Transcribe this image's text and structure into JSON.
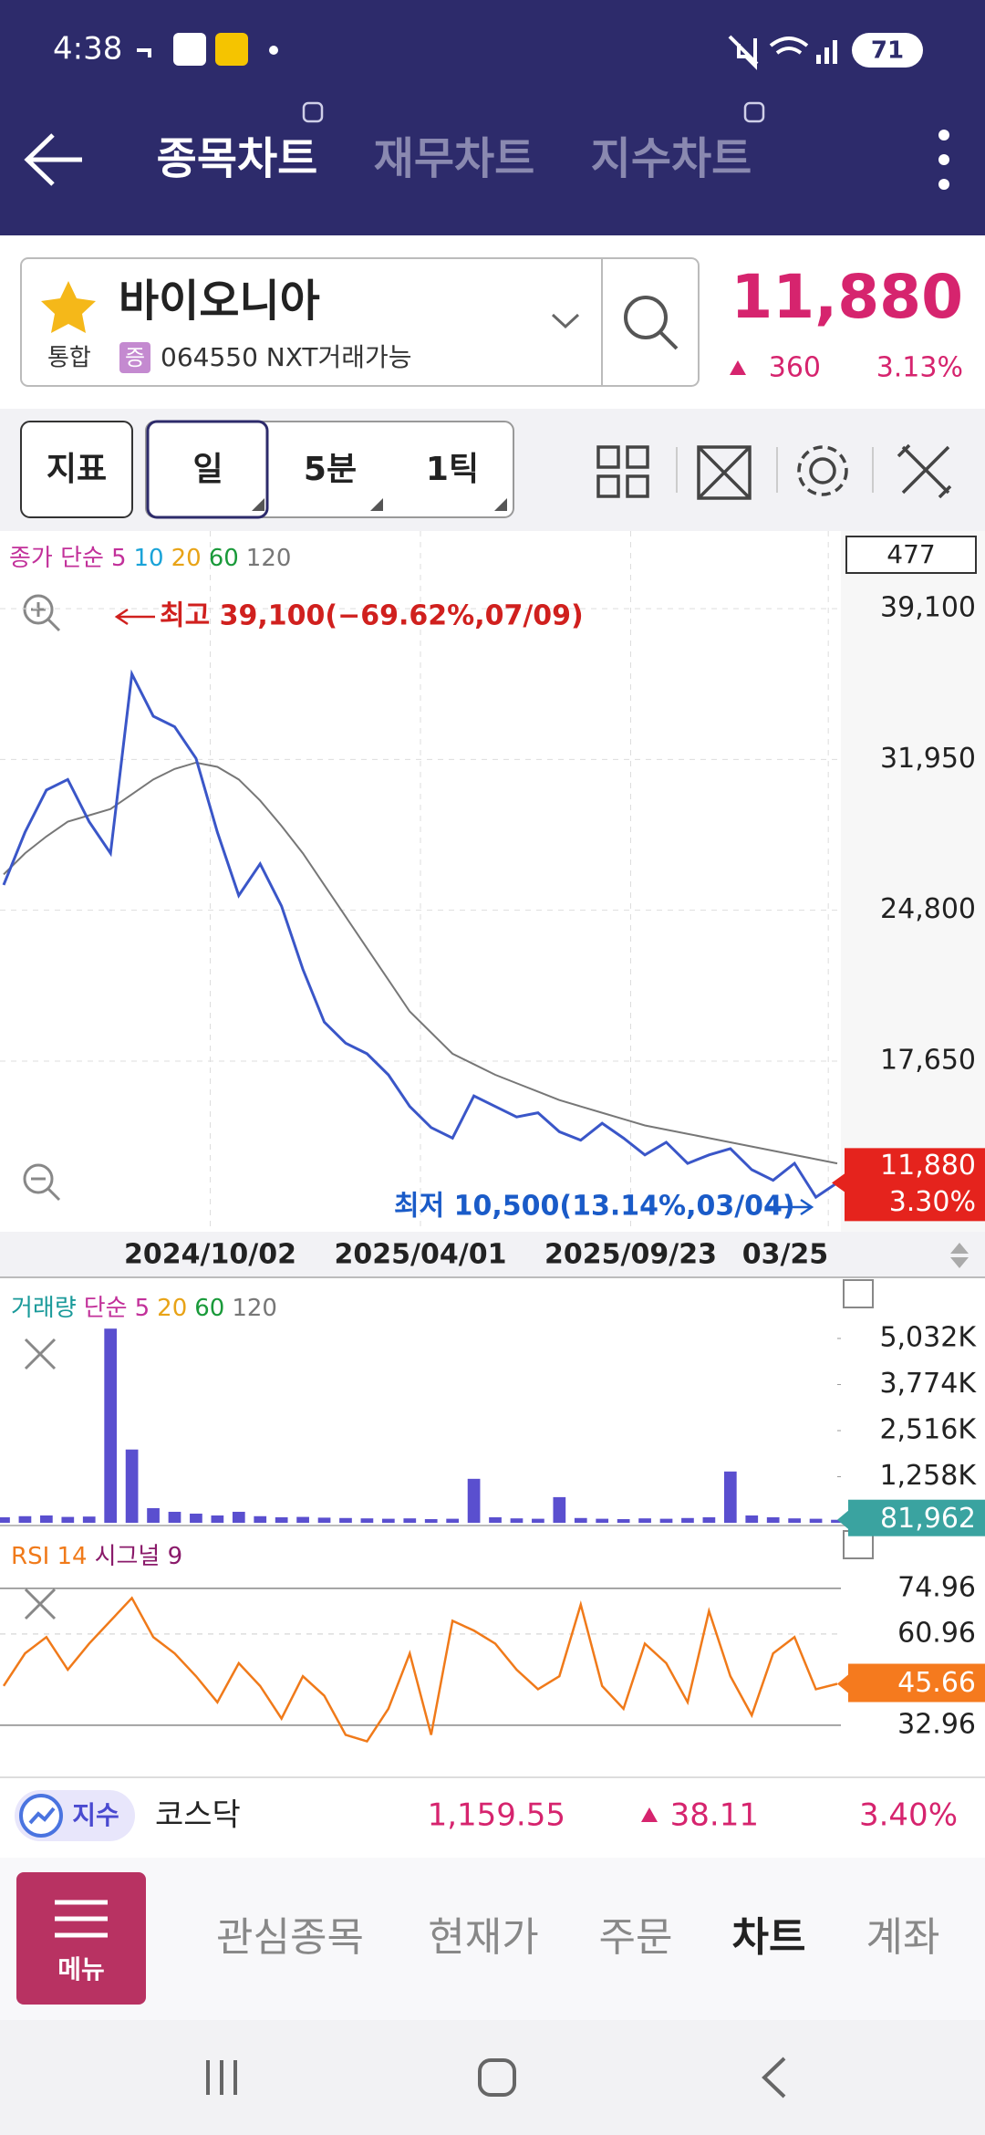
{
  "status_bar": {
    "time": "4:38",
    "battery": "71"
  },
  "header": {
    "tabs": [
      "종목차트",
      "재무차트",
      "지수차트"
    ]
  },
  "stock": {
    "name": "바이오니아",
    "market": "통합",
    "badge": "증",
    "code": "064550 NXT거래가능",
    "price": "11,880",
    "change": "360",
    "change_pct": "3.13%"
  },
  "toolbar": {
    "indicator": "지표",
    "periods": [
      "일",
      "5분",
      "1틱"
    ]
  },
  "price_chart": {
    "type": "line",
    "legend": [
      {
        "text": "종가 단순",
        "color": "#c2309a"
      },
      {
        "text": "5",
        "color": "#c2309a"
      },
      {
        "text": "10",
        "color": "#1aa3d8"
      },
      {
        "text": "20",
        "color": "#e8a317"
      },
      {
        "text": "60",
        "color": "#1a9a3a"
      },
      {
        "text": "120",
        "color": "#777777"
      }
    ],
    "count": "477",
    "ylim": [
      9560,
      42780
    ],
    "yticks": [
      {
        "value": 39100,
        "label": "39,100"
      },
      {
        "value": 31950,
        "label": "31,950"
      },
      {
        "value": 24800,
        "label": "24,800"
      },
      {
        "value": 17650,
        "label": "17,650"
      }
    ],
    "x_labels": [
      "2024/10/02",
      "2025/04/01",
      "2025/09/23",
      "03/25"
    ],
    "grid": true,
    "series": [
      {
        "name": "종가",
        "color": "#3a56c8",
        "values": [
          26000,
          28500,
          30500,
          31000,
          29000,
          27500,
          36000,
          34000,
          33500,
          32000,
          28500,
          25500,
          27000,
          25000,
          22000,
          19500,
          18500,
          18000,
          17000,
          15500,
          14500,
          14000,
          16000,
          15500,
          15000,
          15200,
          14300,
          13900,
          14700,
          14000,
          13200,
          13800,
          12800,
          13200,
          13500,
          12500,
          12000,
          12800,
          11200,
          11880
        ]
      },
      {
        "name": "120",
        "color": "#777777",
        "values": [
          26500,
          27500,
          28300,
          29000,
          29300,
          29600,
          30300,
          31000,
          31500,
          31800,
          31600,
          31000,
          30000,
          28800,
          27500,
          26000,
          24500,
          23000,
          21500,
          20000,
          19000,
          18000,
          17500,
          17000,
          16600,
          16200,
          15800,
          15500,
          15200,
          14900,
          14600,
          14400,
          14200,
          14000,
          13800,
          13600,
          13400,
          13200,
          13000,
          12800
        ]
      }
    ],
    "high_note": "최고 39,100(−69.62%,07/09)",
    "low_note": "최저 10,500(13.14%,03/04)",
    "last": {
      "value": 11880,
      "label": "11,880"
    },
    "last_pct": "3.30%"
  },
  "volume_chart": {
    "type": "bar",
    "legend": [
      {
        "text": "거래량",
        "color": "#1a9a9a"
      },
      {
        "text": "단순",
        "color": "#c2309a"
      },
      {
        "text": "5",
        "color": "#c2309a"
      },
      {
        "text": "20",
        "color": "#e8a317"
      },
      {
        "text": "60",
        "color": "#1a9a3a"
      },
      {
        "text": "120",
        "color": "#777777"
      }
    ],
    "color": "#5a4fcf",
    "ylim": [
      0,
      6700000
    ],
    "yticks": [
      {
        "value": 5032000,
        "label": "5,032K"
      },
      {
        "value": 3774000,
        "label": "3,774K"
      },
      {
        "value": 2516000,
        "label": "2,516K"
      },
      {
        "value": 1258000,
        "label": "1,258K"
      }
    ],
    "values": [
      150000,
      180000,
      200000,
      160000,
      170000,
      5300000,
      2000000,
      400000,
      300000,
      250000,
      200000,
      300000,
      180000,
      150000,
      160000,
      140000,
      130000,
      120000,
      110000,
      120000,
      100000,
      110000,
      1200000,
      150000,
      120000,
      110000,
      700000,
      130000,
      110000,
      100000,
      120000,
      110000,
      130000,
      150000,
      1400000,
      200000,
      150000,
      120000,
      110000,
      81962
    ],
    "last": {
      "value": 81962,
      "label": "81,962"
    }
  },
  "rsi_chart": {
    "type": "line",
    "legend": [
      {
        "text": "RSI 14",
        "color": "#f07a1a"
      },
      {
        "text": "시그널 9",
        "color": "#8a1a6a"
      }
    ],
    "color": "#f07a1a",
    "ylim": [
      17.8,
      92
    ],
    "yticks": [
      74.96,
      60.96,
      32.96
    ],
    "values": [
      45,
      55,
      60,
      50,
      58,
      65,
      72,
      60,
      55,
      48,
      40,
      52,
      45,
      35,
      48,
      42,
      30,
      28,
      38,
      55,
      30,
      65,
      62,
      58,
      50,
      44,
      48,
      70,
      45,
      38,
      58,
      52,
      40,
      68,
      48,
      36,
      55,
      60,
      44,
      45.66
    ],
    "last": 45.66
  },
  "index_bar": {
    "badge": "지수",
    "name": "코스닥",
    "value": "1,159.55",
    "change": "38.11",
    "change_pct": "3.40%"
  },
  "bottom_nav": {
    "menu": "메뉴",
    "items": [
      "관심종목",
      "현재가",
      "주문",
      "차트",
      "계좌"
    ]
  }
}
